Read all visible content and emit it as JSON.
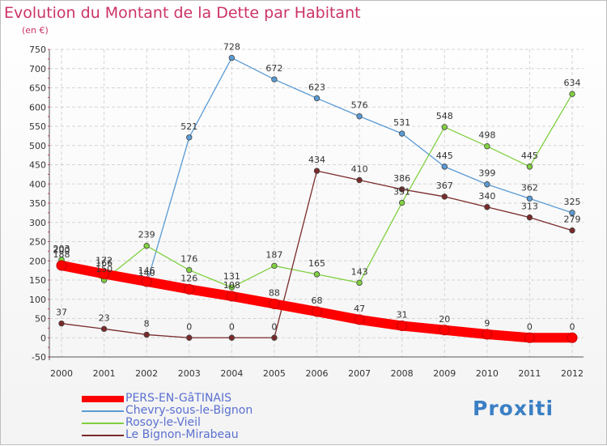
{
  "title": "Evolution du Montant de la Dette par Habitant",
  "subtitle": "(en €)",
  "brand": {
    "text": "Proxiti"
  },
  "chart_data": {
    "type": "line",
    "title": "Evolution du Montant de la Dette par Habitant",
    "ylabel": "(en €)",
    "xlabel": "",
    "x": [
      "2000",
      "2001",
      "2002",
      "2003",
      "2004",
      "2005",
      "2006",
      "2007",
      "2008",
      "2009",
      "2010",
      "2011",
      "2012"
    ],
    "ylim": [
      -50,
      750
    ],
    "yticks": [
      -50,
      0,
      50,
      100,
      150,
      200,
      250,
      300,
      350,
      400,
      450,
      500,
      550,
      600,
      650,
      700,
      750
    ],
    "grid": true,
    "legend_position": "bottom-left",
    "series": [
      {
        "name": "PERS-EN-GâTINAIS",
        "color": "#ff0000",
        "values": [
          188,
          166,
          146,
          126,
          108,
          88,
          68,
          47,
          31,
          20,
          9,
          0,
          0
        ]
      },
      {
        "name": "Chevry-sous-le-Bignon",
        "color": "#5a9bd5",
        "values": [
          200,
          172,
          140,
          521,
          728,
          672,
          623,
          576,
          531,
          445,
          399,
          362,
          325
        ]
      },
      {
        "name": "Rosoy-le-Vieil",
        "color": "#80d040",
        "values": [
          203,
          150,
          239,
          176,
          131,
          187,
          165,
          143,
          351,
          548,
          498,
          445,
          634
        ]
      },
      {
        "name": "Le Bignon-Mirabeau",
        "color": "#7a2a2a",
        "values": [
          37,
          23,
          8,
          0,
          0,
          0,
          434,
          410,
          386,
          367,
          340,
          313,
          279
        ]
      }
    ]
  }
}
